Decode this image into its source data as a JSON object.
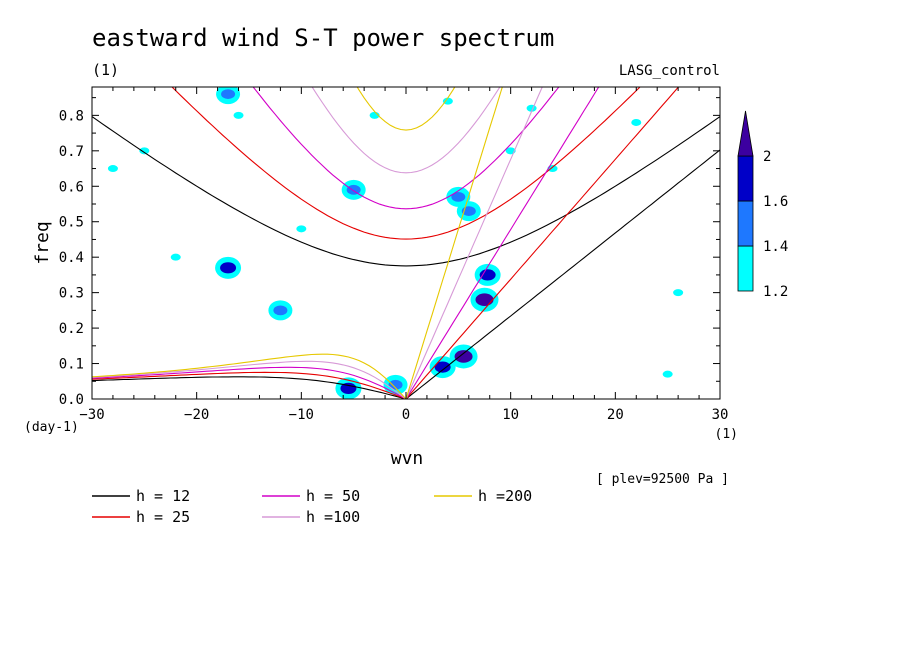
{
  "chart_data": {
    "type": "heatmap",
    "title": "eastward wind S-T power spectrum",
    "subtitle_left": "(1)",
    "subtitle_right": "LASG_control",
    "xlabel": "wvn",
    "ylabel": "freq",
    "x_unit": "(1)",
    "y_unit": "(day-1)",
    "annotation": "[ plev=92500 Pa ]",
    "xlim": [
      -30,
      30
    ],
    "ylim": [
      0,
      0.88
    ],
    "xticks": [
      -30,
      -20,
      -10,
      0,
      10,
      20,
      30
    ],
    "yticks": [
      0.0,
      0.1,
      0.2,
      0.3,
      0.4,
      0.5,
      0.6,
      0.7,
      0.8
    ],
    "colorbar": {
      "levels": [
        1.2,
        1.4,
        1.6,
        2
      ],
      "colors": [
        "#00ffff",
        "#1e78ff",
        "#0000c8",
        "#3c00a0"
      ]
    },
    "dispersion_curves": [
      {
        "label": "h = 12",
        "h": 12,
        "color": "#000000"
      },
      {
        "label": "h = 25",
        "h": 25,
        "color": "#e60000"
      },
      {
        "label": "h = 50",
        "h": 50,
        "color": "#d200c8"
      },
      {
        "label": "h =100",
        "h": 100,
        "color": "#d79ad7"
      },
      {
        "label": "h =200",
        "h": 200,
        "color": "#e6c800"
      }
    ],
    "power_blobs": [
      {
        "x": 7.5,
        "y": 0.28,
        "level": 2
      },
      {
        "x": 5.5,
        "y": 0.12,
        "level": 2
      },
      {
        "x": 7.8,
        "y": 0.35,
        "level": 1.6
      },
      {
        "x": 3.5,
        "y": 0.09,
        "level": 1.6
      },
      {
        "x": -5.5,
        "y": 0.03,
        "level": 1.6
      },
      {
        "x": -17,
        "y": 0.37,
        "level": 1.6
      },
      {
        "x": -12,
        "y": 0.25,
        "level": 1.4
      },
      {
        "x": -1,
        "y": 0.04,
        "level": 1.4
      },
      {
        "x": -17,
        "y": 0.86,
        "level": 1.4
      },
      {
        "x": -5,
        "y": 0.59,
        "level": 1.4
      },
      {
        "x": 5,
        "y": 0.57,
        "level": 1.4
      },
      {
        "x": 6,
        "y": 0.53,
        "level": 1.4
      },
      {
        "x": -16,
        "y": 0.8,
        "level": 1.2
      },
      {
        "x": -25,
        "y": 0.7,
        "level": 1.2
      },
      {
        "x": -22,
        "y": 0.4,
        "level": 1.2
      },
      {
        "x": 12,
        "y": 0.82,
        "level": 1.2
      },
      {
        "x": 14,
        "y": 0.65,
        "level": 1.2
      },
      {
        "x": 22,
        "y": 0.78,
        "level": 1.2
      },
      {
        "x": 26,
        "y": 0.3,
        "level": 1.2
      },
      {
        "x": -28,
        "y": 0.65,
        "level": 1.2
      },
      {
        "x": -3,
        "y": 0.8,
        "level": 1.2
      },
      {
        "x": 4,
        "y": 0.84,
        "level": 1.2
      },
      {
        "x": 10,
        "y": 0.7,
        "level": 1.2
      },
      {
        "x": -10,
        "y": 0.48,
        "level": 1.2
      },
      {
        "x": 25,
        "y": 0.07,
        "level": 1.2
      }
    ]
  }
}
